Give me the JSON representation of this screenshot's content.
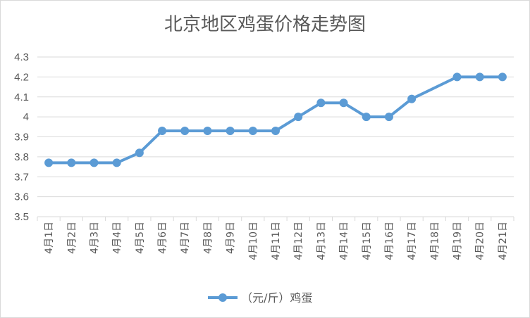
{
  "chart_data": {
    "type": "line",
    "title": "北京地区鸡蛋价格走势图",
    "categories": [
      "4月1日",
      "4月2日",
      "4月3日",
      "4月4日",
      "4月5日",
      "4月6日",
      "4月7日",
      "4月8日",
      "4月9日",
      "4月10日",
      "4月11日",
      "4月12日",
      "4月13日",
      "4月14日",
      "4月15日",
      "4月16日",
      "4月17日",
      "4月18日",
      "4月19日",
      "4月20日",
      "4月21日"
    ],
    "series": [
      {
        "name": "（元/斤）鸡蛋",
        "values": [
          3.77,
          3.77,
          3.77,
          3.77,
          3.82,
          3.93,
          3.93,
          3.93,
          3.93,
          3.93,
          3.93,
          4.0,
          4.07,
          4.07,
          4.0,
          4.0,
          4.09,
          null,
          4.2,
          4.2,
          4.2
        ],
        "color": "#5b9bd5"
      }
    ],
    "yticks": [
      "3.5",
      "3.6",
      "3.7",
      "3.8",
      "3.9",
      "4",
      "4.1",
      "4.2",
      "4.3"
    ],
    "ylim": [
      3.5,
      4.3
    ],
    "grid": true,
    "legend": "bottom"
  }
}
